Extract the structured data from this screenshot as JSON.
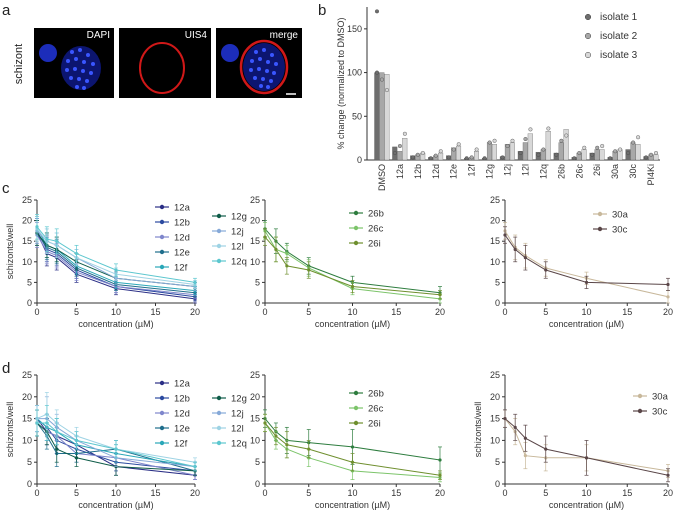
{
  "panel_letters": [
    "a",
    "b",
    "c",
    "d"
  ],
  "micrographs": {
    "row_label": "schizont",
    "panels": [
      {
        "label": "DAPI"
      },
      {
        "label": "UIS4"
      },
      {
        "label": "merge"
      }
    ]
  },
  "colors": {
    "n12a": "#2b2f86",
    "n12b": "#2c4aa0",
    "n12d": "#7f86cc",
    "n12e": "#1f6e8c",
    "n12f": "#2aa7b8",
    "n12g": "#0f5c49",
    "n12j": "#86a9d8",
    "n12l": "#9ed3e4",
    "n12q": "#5dc7cf",
    "n26b": "#2e7d3f",
    "n26c": "#7cc46a",
    "n26i": "#6f8f2e",
    "n30a": "#c8b89b",
    "n30c": "#5a4648",
    "bar_iso1": "#6e6e6e",
    "bar_iso2": "#a8a8a8",
    "bar_iso3": "#d8d8d8"
  },
  "chart_data": [
    {
      "id": "b",
      "type": "bar",
      "ylabel": "% change (normalized to DMSO)",
      "ylim": [
        0,
        175
      ],
      "yticks": [
        0,
        50,
        100,
        150
      ],
      "categories": [
        "DMSO",
        "12a",
        "12b",
        "12d",
        "12e",
        "12f",
        "12g",
        "12j",
        "12l",
        "12q",
        "26b",
        "26c",
        "26i",
        "30a",
        "30c",
        "PI4Ki"
      ],
      "series": [
        {
          "name": "isolate 1",
          "values": [
            100,
            15,
            5,
            3,
            5,
            2,
            2,
            4,
            10,
            9,
            8,
            3,
            8,
            3,
            12,
            4
          ]
        },
        {
          "name": "isolate 2",
          "values": [
            100,
            10,
            6,
            5,
            14,
            3,
            20,
            18,
            20,
            12,
            20,
            8,
            12,
            10,
            20,
            6
          ]
        },
        {
          "name": "isolate 3",
          "values": [
            98,
            25,
            8,
            8,
            16,
            10,
            18,
            20,
            30,
            33,
            35,
            12,
            12,
            12,
            18,
            6
          ]
        }
      ],
      "points": [
        [
          [
            170,
            92,
            80,
            100
          ],
          [
            8,
            16,
            30
          ],
          [
            3,
            6,
            8
          ],
          [
            2,
            5,
            10
          ],
          [
            3,
            12,
            18
          ],
          [
            2,
            3,
            12
          ],
          [
            2,
            20,
            22
          ],
          [
            3,
            16,
            22
          ],
          [
            8,
            24,
            35
          ],
          [
            6,
            12,
            36
          ],
          [
            6,
            22,
            28
          ],
          [
            2,
            8,
            14
          ],
          [
            6,
            14,
            16
          ],
          [
            2,
            10,
            12
          ],
          [
            8,
            20,
            26
          ],
          [
            3,
            6,
            8
          ]
        ]
      ],
      "legend": [
        "isolate 1",
        "isolate 2",
        "isolate 3"
      ]
    },
    {
      "id": "c1",
      "type": "line",
      "xlabel": "concentration (µM)",
      "ylabel": "schizonts/well",
      "xlim": [
        0,
        20
      ],
      "ylim": [
        0,
        25
      ],
      "xticks": [
        0,
        5,
        10,
        15,
        20
      ],
      "yticks": [
        0,
        5,
        10,
        15,
        20,
        25
      ],
      "x": [
        0,
        1.25,
        2.5,
        5,
        10,
        20
      ],
      "series": [
        {
          "name": "12a",
          "color": "n12a",
          "values": [
            17,
            12,
            11,
            7,
            3.5,
            1
          ],
          "err": [
            3,
            3,
            3,
            2,
            1.5,
            1
          ]
        },
        {
          "name": "12b",
          "color": "n12b",
          "values": [
            17.5,
            13,
            12,
            8,
            4,
            1.5
          ],
          "err": [
            3,
            3,
            3,
            2,
            1.5,
            1
          ]
        },
        {
          "name": "12d",
          "color": "n12d",
          "values": [
            16.5,
            12.5,
            11.5,
            7.5,
            4,
            2
          ],
          "err": [
            3,
            3,
            3,
            2,
            1.5,
            1
          ]
        },
        {
          "name": "12e",
          "color": "n12e",
          "values": [
            17,
            13.5,
            12.5,
            8.5,
            4.5,
            2.5
          ],
          "err": [
            3,
            3,
            3,
            2,
            1.5,
            1
          ]
        },
        {
          "name": "12f",
          "color": "n12f",
          "values": [
            18,
            14,
            13,
            9,
            5,
            3
          ],
          "err": [
            3,
            3,
            3,
            2,
            1.5,
            1
          ]
        },
        {
          "name": "12g",
          "color": "n12g",
          "values": [
            17,
            14,
            13,
            10,
            6,
            4
          ],
          "err": [
            3,
            3,
            3,
            2,
            1.5,
            1
          ]
        },
        {
          "name": "12j",
          "color": "n12j",
          "values": [
            17.5,
            15,
            14,
            11,
            6,
            4
          ],
          "err": [
            3,
            3,
            3,
            2,
            1.5,
            1
          ]
        },
        {
          "name": "12l",
          "color": "n12l",
          "values": [
            18,
            15,
            14,
            11,
            7,
            4.5
          ],
          "err": [
            3,
            3,
            3,
            2,
            1.5,
            1
          ]
        },
        {
          "name": "12q",
          "color": "n12q",
          "values": [
            18.5,
            15.5,
            15,
            12,
            8,
            5
          ],
          "err": [
            3,
            3,
            3,
            2,
            1.5,
            1
          ]
        }
      ],
      "legend": [
        [
          "12a",
          "12b",
          "12d",
          "12e",
          "12f"
        ],
        [
          "12g",
          "12j",
          "12l",
          "12q"
        ]
      ]
    },
    {
      "id": "c2",
      "type": "line",
      "xlabel": "concentration (µM)",
      "ylabel": "",
      "xlim": [
        0,
        20
      ],
      "ylim": [
        0,
        25
      ],
      "xticks": [
        0,
        5,
        10,
        15,
        20
      ],
      "yticks": [
        0,
        5,
        10,
        15,
        20,
        25
      ],
      "x": [
        0,
        1.25,
        2.5,
        5,
        10,
        20
      ],
      "series": [
        {
          "name": "26b",
          "color": "n26b",
          "values": [
            18,
            15,
            12.5,
            9,
            5,
            2.5
          ],
          "err": [
            2,
            3,
            2,
            2,
            1.5,
            1.5
          ]
        },
        {
          "name": "26c",
          "color": "n26c",
          "values": [
            17.5,
            13,
            12,
            8.5,
            3.5,
            1
          ],
          "err": [
            2,
            3,
            2,
            2,
            1.5,
            1
          ]
        },
        {
          "name": "26i",
          "color": "n26i",
          "values": [
            16,
            13,
            9,
            8,
            4,
            2
          ],
          "err": [
            2,
            3,
            2,
            2,
            1.5,
            1
          ]
        }
      ],
      "legend": [
        [
          "26b",
          "26c",
          "26i"
        ]
      ]
    },
    {
      "id": "c3",
      "type": "line",
      "xlabel": "concentration (µM)",
      "ylabel": "",
      "xlim": [
        0,
        20
      ],
      "ylim": [
        0,
        25
      ],
      "xticks": [
        0,
        5,
        10,
        15,
        20
      ],
      "yticks": [
        0,
        5,
        10,
        15,
        20,
        25
      ],
      "x": [
        0,
        1.25,
        2.5,
        5,
        10,
        20
      ],
      "series": [
        {
          "name": "30a",
          "color": "n30a",
          "values": [
            17.5,
            13.5,
            11.5,
            8.5,
            6,
            1.5
          ],
          "err": [
            2,
            3,
            3,
            2,
            1.5,
            1.5
          ]
        },
        {
          "name": "30c",
          "color": "n30c",
          "values": [
            16.5,
            13,
            11,
            8,
            5,
            4.5
          ],
          "err": [
            2,
            3,
            3,
            2,
            1.5,
            1.5
          ]
        }
      ],
      "legend": [
        [
          "30a",
          "30c"
        ]
      ]
    },
    {
      "id": "d1",
      "type": "line",
      "xlabel": "concentration (µM)",
      "ylabel": "schizonts/well",
      "xlim": [
        0,
        20
      ],
      "ylim": [
        0,
        25
      ],
      "xticks": [
        0,
        5,
        10,
        15,
        20
      ],
      "yticks": [
        0,
        5,
        10,
        15,
        20,
        25
      ],
      "x": [
        0,
        1.25,
        2.5,
        5,
        10,
        20
      ],
      "series": [
        {
          "name": "12a",
          "color": "n12a",
          "values": [
            15,
            12,
            11,
            9,
            4,
            2
          ],
          "err": [
            3,
            3,
            3,
            2,
            2,
            1
          ]
        },
        {
          "name": "12b",
          "color": "n12b",
          "values": [
            15,
            13,
            10,
            8,
            5,
            3
          ],
          "err": [
            3,
            3,
            3,
            2,
            2,
            1
          ]
        },
        {
          "name": "12d",
          "color": "n12d",
          "values": [
            14,
            12,
            11,
            7,
            6,
            2
          ],
          "err": [
            3,
            3,
            3,
            2,
            2,
            1
          ]
        },
        {
          "name": "12e",
          "color": "n12e",
          "values": [
            14,
            11,
            7,
            7,
            8,
            3
          ],
          "err": [
            3,
            3,
            3,
            2,
            2,
            1
          ]
        },
        {
          "name": "12f",
          "color": "n12f",
          "values": [
            15,
            13,
            12,
            9,
            7,
            4
          ],
          "err": [
            3,
            3,
            3,
            2,
            2,
            1
          ]
        },
        {
          "name": "12g",
          "color": "n12g",
          "values": [
            14,
            12,
            8,
            6,
            4,
            3
          ],
          "err": [
            3,
            3,
            3,
            2,
            2,
            1
          ]
        },
        {
          "name": "12j",
          "color": "n12j",
          "values": [
            15,
            15,
            13,
            10,
            6,
            4
          ],
          "err": [
            3,
            5,
            3,
            2,
            2,
            1
          ]
        },
        {
          "name": "12l",
          "color": "n12l",
          "values": [
            15,
            16,
            14,
            11,
            8,
            5
          ],
          "err": [
            3,
            5,
            3,
            2,
            2,
            1
          ]
        },
        {
          "name": "12q",
          "color": "n12q",
          "values": [
            14,
            14,
            12,
            10,
            8,
            4
          ],
          "err": [
            3,
            4,
            3,
            2,
            2,
            1
          ]
        }
      ],
      "legend": [
        [
          "12a",
          "12b",
          "12d",
          "12e",
          "12f"
        ],
        [
          "12g",
          "12j",
          "12l",
          "12q"
        ]
      ]
    },
    {
      "id": "d2",
      "type": "line",
      "xlabel": "concentration (µM)",
      "ylabel": "",
      "xlim": [
        0,
        20
      ],
      "ylim": [
        0,
        25
      ],
      "xticks": [
        0,
        5,
        10,
        15,
        20
      ],
      "yticks": [
        0,
        5,
        10,
        15,
        20,
        25
      ],
      "x": [
        0,
        1.25,
        2.5,
        5,
        10,
        20
      ],
      "series": [
        {
          "name": "26b",
          "color": "n26b",
          "values": [
            15,
            12,
            10,
            9.5,
            8.5,
            5.5
          ],
          "err": [
            2,
            2,
            3,
            3,
            4,
            3
          ]
        },
        {
          "name": "26c",
          "color": "n26c",
          "values": [
            14,
            10,
            8,
            6,
            3,
            1.5
          ],
          "err": [
            2,
            2,
            2,
            2,
            2,
            1
          ]
        },
        {
          "name": "26i",
          "color": "n26i",
          "values": [
            14,
            11,
            9,
            8,
            5,
            2
          ],
          "err": [
            2,
            2,
            3,
            2,
            2,
            1
          ]
        }
      ],
      "legend": [
        [
          "26b",
          "26c",
          "26i"
        ]
      ]
    },
    {
      "id": "d3",
      "type": "line",
      "xlabel": "concentration (µM)",
      "ylabel": "schizonts/well",
      "xlim": [
        0,
        20
      ],
      "ylim": [
        0,
        25
      ],
      "xticks": [
        0,
        5,
        10,
        15,
        20
      ],
      "yticks": [
        0,
        5,
        10,
        15,
        20,
        25
      ],
      "x": [
        0,
        1.25,
        2.5,
        5,
        10,
        20
      ],
      "series": [
        {
          "name": "30a",
          "color": "n30a",
          "values": [
            15,
            12,
            6.5,
            6,
            6,
            3
          ],
          "err": [
            2,
            3,
            3,
            3,
            3,
            1.5
          ]
        },
        {
          "name": "30c",
          "color": "n30c",
          "values": [
            15,
            13,
            10.5,
            8,
            6,
            2
          ],
          "err": [
            2,
            3,
            3,
            3,
            4,
            1.5
          ]
        }
      ],
      "legend": [
        [
          "30a",
          "30c"
        ]
      ]
    }
  ]
}
